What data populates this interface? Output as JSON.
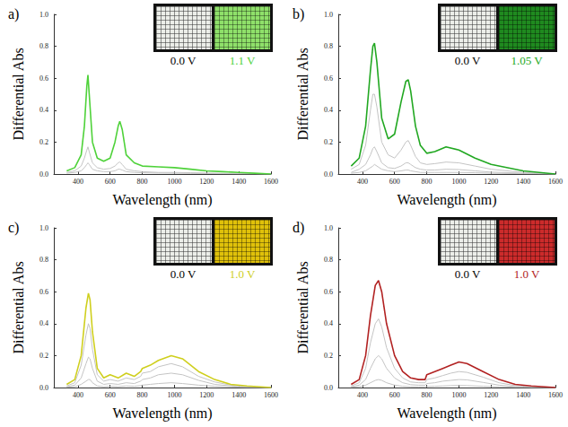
{
  "chart_data": [
    {
      "type": "line",
      "title": "a)",
      "xlabel": "Wavelength (nm)",
      "ylabel": "Differential Abs",
      "xlim": [
        250,
        1600
      ],
      "ylim": [
        0,
        1
      ],
      "xticks": [
        400,
        600,
        800,
        1000,
        1200,
        1400,
        1600
      ],
      "yticks": [
        {
          "value": 0,
          "label": "0.0"
        },
        0.2,
        0.4,
        0.6,
        0.8,
        {
          "value": 1,
          "label": "1.0"
        }
      ],
      "grid": false,
      "photos": [
        {
          "label": "0.0 V",
          "color": "#eceee9"
        },
        {
          "label": "1.1 V",
          "color": "#8fe06a"
        }
      ],
      "x": [
        330,
        380,
        420,
        440,
        455,
        462,
        470,
        490,
        520,
        560,
        600,
        630,
        650,
        660,
        675,
        700,
        750,
        800,
        900,
        1000,
        1100,
        1200,
        1300,
        1400,
        1500,
        1600
      ],
      "series": [
        {
          "color": "#c4c4c4",
          "values": [
            0.005,
            0.01,
            0.02,
            0.04,
            0.06,
            0.07,
            0.06,
            0.03,
            0.02,
            0.015,
            0.015,
            0.02,
            0.03,
            0.03,
            0.025,
            0.015,
            0.01,
            0.008,
            0.006,
            0.005,
            0.004,
            0.003,
            0.002,
            0.001,
            0.001,
            0.0
          ]
        },
        {
          "color": "#c4c4c4",
          "values": [
            0.01,
            0.02,
            0.05,
            0.1,
            0.15,
            0.17,
            0.14,
            0.07,
            0.04,
            0.03,
            0.035,
            0.05,
            0.07,
            0.075,
            0.06,
            0.03,
            0.02,
            0.015,
            0.01,
            0.01,
            0.008,
            0.006,
            0.004,
            0.003,
            0.002,
            0.0
          ]
        },
        {
          "color": "#4fd23a",
          "values": [
            0.02,
            0.04,
            0.12,
            0.3,
            0.55,
            0.62,
            0.5,
            0.2,
            0.1,
            0.08,
            0.1,
            0.2,
            0.3,
            0.33,
            0.28,
            0.12,
            0.07,
            0.05,
            0.045,
            0.04,
            0.03,
            0.02,
            0.015,
            0.01,
            0.005,
            0.0
          ]
        }
      ]
    },
    {
      "type": "line",
      "title": "b)",
      "xlabel": "Wavelength (nm)",
      "ylabel": "Differential Abs",
      "xlim": [
        250,
        1600
      ],
      "ylim": [
        0,
        1
      ],
      "xticks": [
        400,
        600,
        800,
        1000,
        1200,
        1400,
        1600
      ],
      "yticks": [
        {
          "value": 0,
          "label": "0.0"
        },
        0.2,
        0.4,
        0.6,
        0.8,
        {
          "value": 1,
          "label": "1.0"
        }
      ],
      "grid": false,
      "photos": [
        {
          "label": "0.0 V",
          "color": "#eceee9"
        },
        {
          "label": "1.05 V",
          "color": "#1f8a1f"
        }
      ],
      "x": [
        330,
        380,
        420,
        450,
        465,
        475,
        490,
        520,
        560,
        600,
        640,
        670,
        685,
        700,
        730,
        760,
        800,
        850,
        920,
        1000,
        1100,
        1200,
        1400,
        1600
      ],
      "series": [
        {
          "color": "#c4c4c4",
          "values": [
            0.005,
            0.01,
            0.02,
            0.04,
            0.05,
            0.06,
            0.05,
            0.03,
            0.02,
            0.015,
            0.02,
            0.025,
            0.025,
            0.02,
            0.015,
            0.01,
            0.01,
            0.01,
            0.01,
            0.01,
            0.008,
            0.005,
            0.002,
            0.0
          ]
        },
        {
          "color": "#c4c4c4",
          "values": [
            0.01,
            0.03,
            0.06,
            0.12,
            0.16,
            0.17,
            0.14,
            0.07,
            0.04,
            0.035,
            0.05,
            0.07,
            0.07,
            0.06,
            0.04,
            0.03,
            0.025,
            0.025,
            0.03,
            0.028,
            0.02,
            0.012,
            0.005,
            0.0
          ]
        },
        {
          "color": "#c4c4c4",
          "values": [
            0.03,
            0.06,
            0.18,
            0.4,
            0.5,
            0.5,
            0.42,
            0.2,
            0.12,
            0.1,
            0.15,
            0.2,
            0.21,
            0.18,
            0.11,
            0.07,
            0.06,
            0.065,
            0.075,
            0.07,
            0.05,
            0.03,
            0.01,
            0.0
          ]
        },
        {
          "color": "#22a822",
          "values": [
            0.05,
            0.1,
            0.3,
            0.65,
            0.8,
            0.82,
            0.7,
            0.35,
            0.22,
            0.25,
            0.45,
            0.58,
            0.59,
            0.52,
            0.3,
            0.18,
            0.13,
            0.14,
            0.17,
            0.15,
            0.1,
            0.06,
            0.02,
            0.0
          ]
        }
      ]
    },
    {
      "type": "line",
      "title": "c)",
      "xlabel": "Wavelength (nm)",
      "ylabel": "Differential Abs",
      "xlim": [
        250,
        1600
      ],
      "ylim": [
        0,
        1
      ],
      "xticks": [
        400,
        600,
        800,
        1000,
        1200,
        1400,
        1600
      ],
      "yticks": [
        {
          "value": 0,
          "label": "0.0"
        },
        0.2,
        0.4,
        0.6,
        0.8,
        {
          "value": 1,
          "label": "1.0"
        }
      ],
      "grid": false,
      "photos": [
        {
          "label": "0.0 V",
          "color": "#eceee9"
        },
        {
          "label": "1.0 V",
          "color": "#e0c10a"
        }
      ],
      "x": [
        330,
        380,
        420,
        450,
        465,
        475,
        490,
        520,
        560,
        600,
        650,
        700,
        750,
        790,
        800,
        850,
        900,
        980,
        1050,
        1150,
        1250,
        1350,
        1450,
        1600
      ],
      "series": [
        {
          "color": "#c4c4c4",
          "values": [
            0.002,
            0.005,
            0.02,
            0.04,
            0.05,
            0.05,
            0.03,
            0.01,
            0.005,
            0.008,
            0.006,
            0.01,
            0.008,
            0.012,
            0.015,
            0.02,
            0.025,
            0.03,
            0.025,
            0.015,
            0.008,
            0.004,
            0.001,
            0.0
          ]
        },
        {
          "color": "#c4c4c4",
          "values": [
            0.005,
            0.015,
            0.06,
            0.15,
            0.19,
            0.18,
            0.12,
            0.04,
            0.02,
            0.025,
            0.02,
            0.03,
            0.025,
            0.04,
            0.05,
            0.06,
            0.08,
            0.09,
            0.08,
            0.045,
            0.02,
            0.01,
            0.003,
            0.0
          ]
        },
        {
          "color": "#c4c4c4",
          "values": [
            0.01,
            0.03,
            0.14,
            0.33,
            0.4,
            0.37,
            0.24,
            0.08,
            0.04,
            0.05,
            0.04,
            0.06,
            0.05,
            0.07,
            0.09,
            0.1,
            0.13,
            0.15,
            0.13,
            0.07,
            0.035,
            0.015,
            0.005,
            0.0
          ]
        },
        {
          "color": "#cfcf1e",
          "values": [
            0.02,
            0.05,
            0.2,
            0.5,
            0.59,
            0.55,
            0.35,
            0.12,
            0.06,
            0.08,
            0.06,
            0.09,
            0.07,
            0.1,
            0.12,
            0.14,
            0.17,
            0.2,
            0.18,
            0.1,
            0.05,
            0.02,
            0.01,
            0.0
          ]
        }
      ]
    },
    {
      "type": "line",
      "title": "d)",
      "xlabel": "Wavelength (nm)",
      "ylabel": "Differential Abs",
      "xlim": [
        250,
        1600
      ],
      "ylim": [
        0,
        1
      ],
      "xticks": [
        400,
        600,
        800,
        1000,
        1200,
        1400,
        1600
      ],
      "yticks": [
        {
          "value": 0,
          "label": "0.0"
        },
        0.2,
        0.4,
        0.6,
        0.8,
        {
          "value": 1,
          "label": "1.0"
        }
      ],
      "grid": false,
      "photos": [
        {
          "label": "0.0 V",
          "color": "#eceee9"
        },
        {
          "label": "1.0 V",
          "color": "#cc2b2b"
        }
      ],
      "x": [
        330,
        380,
        420,
        450,
        480,
        500,
        520,
        550,
        600,
        650,
        700,
        750,
        790,
        800,
        850,
        900,
        950,
        1000,
        1050,
        1150,
        1250,
        1350,
        1450,
        1600
      ],
      "series": [
        {
          "color": "#c4c4c4",
          "values": [
            0.002,
            0.005,
            0.015,
            0.03,
            0.045,
            0.05,
            0.045,
            0.03,
            0.015,
            0.008,
            0.005,
            0.004,
            0.004,
            0.006,
            0.008,
            0.01,
            0.012,
            0.013,
            0.012,
            0.008,
            0.004,
            0.002,
            0.001,
            0.0
          ]
        },
        {
          "color": "#c4c4c4",
          "values": [
            0.005,
            0.015,
            0.05,
            0.12,
            0.18,
            0.2,
            0.18,
            0.12,
            0.06,
            0.03,
            0.018,
            0.015,
            0.015,
            0.025,
            0.03,
            0.04,
            0.045,
            0.05,
            0.048,
            0.032,
            0.015,
            0.006,
            0.002,
            0.0
          ]
        },
        {
          "color": "#c4c4c4",
          "values": [
            0.01,
            0.03,
            0.12,
            0.28,
            0.4,
            0.43,
            0.38,
            0.25,
            0.12,
            0.06,
            0.035,
            0.03,
            0.03,
            0.05,
            0.06,
            0.075,
            0.09,
            0.1,
            0.095,
            0.065,
            0.03,
            0.012,
            0.005,
            0.0
          ]
        },
        {
          "color": "#b22222",
          "values": [
            0.02,
            0.05,
            0.2,
            0.45,
            0.64,
            0.67,
            0.6,
            0.4,
            0.2,
            0.1,
            0.06,
            0.05,
            0.05,
            0.08,
            0.1,
            0.12,
            0.14,
            0.16,
            0.15,
            0.1,
            0.05,
            0.02,
            0.01,
            0.0
          ]
        }
      ]
    }
  ]
}
